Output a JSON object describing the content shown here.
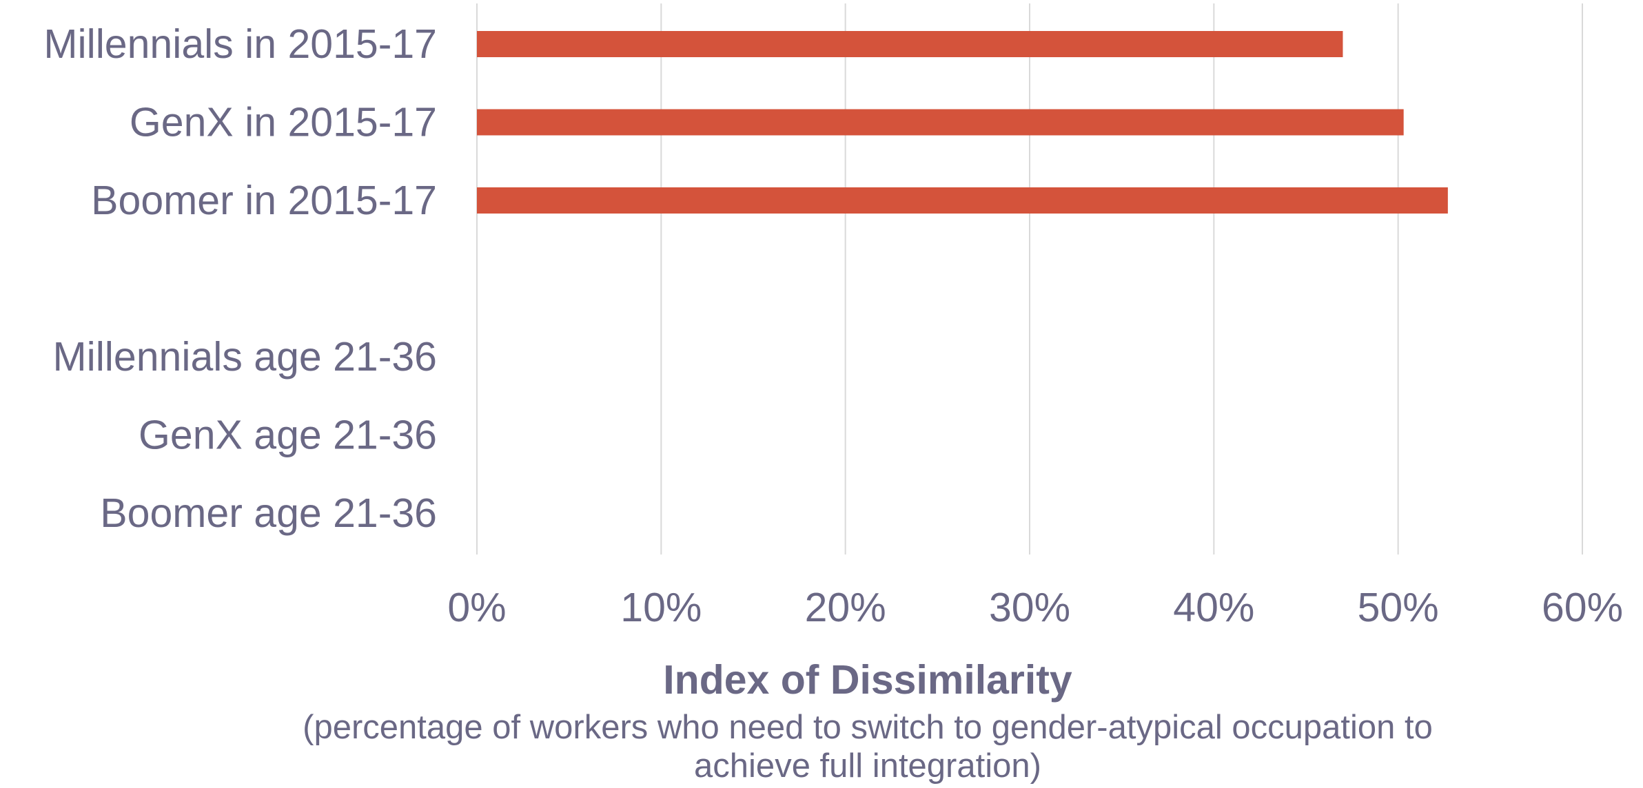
{
  "chart_data": {
    "type": "bar",
    "orientation": "horizontal",
    "categories": [
      "Millennials in 2015-17",
      "GenX in 2015-17",
      "Boomer in 2015-17",
      "",
      "Millennials age 21-36",
      "GenX age 21-36",
      "Boomer age 21-36"
    ],
    "values": [
      0.47,
      0.503,
      0.527,
      null,
      null,
      null,
      null
    ],
    "xlim": [
      0,
      0.6
    ],
    "xticks": [
      {
        "value": 0,
        "label": "0%"
      },
      {
        "value": 0.1,
        "label": "10%"
      },
      {
        "value": 0.2,
        "label": "20%"
      },
      {
        "value": 0.3,
        "label": "30%"
      },
      {
        "value": 0.4,
        "label": "40%"
      },
      {
        "value": 0.5,
        "label": "50%"
      },
      {
        "value": 0.6,
        "label": "60%"
      }
    ],
    "xlabel": "Index of Dissimilarity",
    "xlabel_sub_lines": [
      "(percentage of workers who need to switch to gender-atypical occupation to",
      "achieve full integration)"
    ],
    "grid": true,
    "bar_color": "#d4533b",
    "grid_color": "#d9d9d9",
    "text_color": "#6a6885"
  }
}
